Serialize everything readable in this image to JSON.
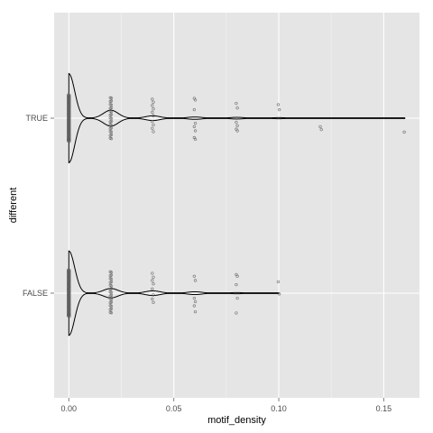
{
  "chart_data": {
    "type": "violin",
    "xlabel": "motif_density",
    "ylabel": "different",
    "xlim": [
      -0.007,
      0.167
    ],
    "x_ticks": [
      {
        "value": 0.0,
        "label": "0.00"
      },
      {
        "value": 0.05,
        "label": "0.05"
      },
      {
        "value": 0.1,
        "label": "0.10"
      },
      {
        "value": 0.15,
        "label": "0.15"
      }
    ],
    "categories": [
      "FALSE",
      "TRUE"
    ],
    "grid": true,
    "background": "#e5e5e5",
    "gridline_color": "#ffffff",
    "violin_color": "#000000",
    "point_color": "#595959",
    "series": [
      {
        "category": "TRUE",
        "violin": {
          "range": [
            0.0,
            0.16
          ],
          "density_peaks": [
            {
              "x": 0.0,
              "halfwidth": 0.95
            },
            {
              "x": 0.02,
              "halfwidth": 0.17
            },
            {
              "x": 0.04,
              "halfwidth": 0.05
            },
            {
              "x": 0.06,
              "halfwidth": 0.025
            },
            {
              "x": 0.08,
              "halfwidth": 0.018
            },
            {
              "x": 0.1,
              "halfwidth": 0.012
            },
            {
              "x": 0.12,
              "halfwidth": 0.006
            },
            {
              "x": 0.16,
              "halfwidth": 0.003
            }
          ]
        },
        "points": [
          {
            "x": 0.0,
            "jitter": [
              -0.5,
              -0.44,
              -0.38,
              -0.32,
              -0.26,
              -0.2,
              -0.14,
              -0.08,
              -0.02,
              0.04,
              0.1,
              0.16,
              0.22,
              0.28,
              0.34,
              0.4,
              0.46,
              0.5
            ]
          },
          {
            "x": 0.02,
            "jitter": [
              -0.48,
              -0.4,
              -0.32,
              -0.24,
              -0.16,
              -0.08,
              0.0,
              0.08,
              0.16,
              0.24,
              0.32,
              0.4,
              0.48
            ]
          },
          {
            "x": 0.04,
            "jitter": [
              -0.45,
              -0.38,
              -0.3,
              -0.22,
              -0.14,
              -0.06,
              0.08,
              0.16,
              0.24,
              0.32
            ]
          },
          {
            "x": 0.06,
            "jitter": [
              -0.47,
              -0.43,
              -0.2,
              0.12,
              0.2,
              0.3,
              0.46,
              0.5
            ]
          },
          {
            "x": 0.08,
            "jitter": [
              -0.35,
              -0.24,
              0.1,
              0.18,
              0.26,
              0.3
            ]
          },
          {
            "x": 0.1,
            "jitter": [
              -0.32,
              -0.2
            ]
          },
          {
            "x": 0.12,
            "jitter": [
              0.2,
              0.27
            ]
          },
          {
            "x": 0.16,
            "jitter": [
              0.33
            ]
          }
        ]
      },
      {
        "category": "FALSE",
        "violin": {
          "range": [
            0.0,
            0.1
          ],
          "density_peaks": [
            {
              "x": 0.0,
              "halfwidth": 0.9
            },
            {
              "x": 0.02,
              "halfwidth": 0.1
            },
            {
              "x": 0.04,
              "halfwidth": 0.05
            },
            {
              "x": 0.06,
              "halfwidth": 0.03
            },
            {
              "x": 0.08,
              "halfwidth": 0.012
            },
            {
              "x": 0.1,
              "halfwidth": 0.008
            }
          ]
        },
        "points": [
          {
            "x": 0.0,
            "jitter": [
              -0.5,
              -0.44,
              -0.38,
              -0.32,
              -0.26,
              -0.2,
              -0.14,
              -0.08,
              -0.02,
              0.04,
              0.1,
              0.16,
              0.22,
              0.28,
              0.34,
              0.4,
              0.46,
              0.5
            ]
          },
          {
            "x": 0.02,
            "jitter": [
              -0.5,
              -0.42,
              -0.34,
              -0.26,
              -0.18,
              -0.1,
              -0.02,
              0.06,
              0.14,
              0.22,
              0.3,
              0.38,
              0.46
            ]
          },
          {
            "x": 0.04,
            "jitter": [
              -0.47,
              -0.38,
              -0.3,
              -0.22,
              -0.1,
              0.04,
              0.14,
              0.22
            ]
          },
          {
            "x": 0.06,
            "jitter": [
              -0.4,
              -0.3,
              0.12,
              0.2,
              0.3,
              0.44
            ]
          },
          {
            "x": 0.08,
            "jitter": [
              -0.44,
              -0.4,
              -0.2,
              0.12,
              0.47
            ]
          },
          {
            "x": 0.1,
            "jitter": [
              -0.27,
              0.02
            ]
          }
        ]
      }
    ]
  }
}
